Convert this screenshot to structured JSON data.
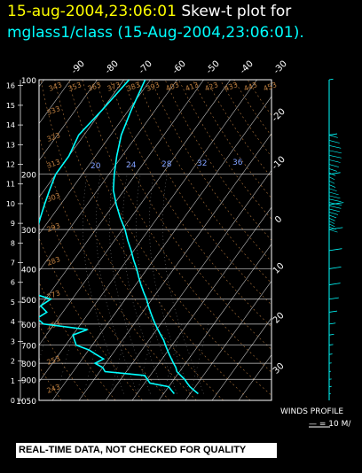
{
  "title": {
    "line1_date": "15-aug-2004,23:06:01",
    "line1_text": "Skew-t plot for",
    "line2": "mglass1/class (15-Aug-2004,23:06:01)."
  },
  "banner": "REAL-TIME DATA, NOT CHECKED FOR QUALITY",
  "winds": {
    "label": "WINDS PROFILE",
    "scale": "— = 10 M/"
  },
  "colors": {
    "temperature": "#00ffff",
    "dewpoint": "#00ffff",
    "isotherms": "#ffffff",
    "adiabats": "#c08040",
    "mixing": "#ffffff"
  },
  "chart_data": {
    "type": "line",
    "chart_kind": "skew-t log-p",
    "pressure_ticks": [
      100,
      200,
      300,
      400,
      500,
      600,
      700,
      800,
      900,
      1050
    ],
    "height_ticks_km": [
      16,
      15,
      14,
      13,
      12,
      11,
      10,
      9,
      8,
      7,
      6,
      5,
      4,
      3,
      2,
      1,
      0
    ],
    "temp_ticks_top": [
      "-90",
      "-80",
      "-70",
      "-60",
      "-50",
      "-40",
      "-30"
    ],
    "temp_ticks_right": [
      "-20",
      "-10",
      "0",
      "10",
      "20",
      "30"
    ],
    "mixing_ratio_labels": [
      "20",
      "24",
      "28",
      "32",
      "36"
    ],
    "dry_adiabat_labels": [
      "243",
      "253",
      "263",
      "273",
      "283",
      "293",
      "303",
      "313",
      "323",
      "333",
      "343",
      "353",
      "363",
      "373",
      "383",
      "393",
      "403",
      "413",
      "423",
      "433",
      "443",
      "453"
    ],
    "series": [
      {
        "p": [
          1000,
          975,
          950,
          925,
          900,
          875,
          850,
          825,
          800,
          775,
          750,
          725,
          700,
          675,
          650,
          625,
          600,
          575,
          550,
          525,
          500,
          475,
          450,
          425,
          400,
          375,
          350,
          325,
          300,
          275,
          250,
          225,
          200,
          175,
          150,
          125,
          100
        ],
        "t": [
          33,
          30.5,
          28,
          26,
          24,
          21.5,
          19,
          17.5,
          15.5,
          13.5,
          11.5,
          9.5,
          7.5,
          5.5,
          3,
          0.5,
          -2,
          -4.5,
          -7,
          -9.5,
          -12,
          -15,
          -18,
          -21,
          -24,
          -27.5,
          -31,
          -35,
          -39,
          -44,
          -49,
          -54,
          -58,
          -62,
          -66,
          -69,
          -72
        ]
      },
      {
        "p": [
          1000,
          975,
          950,
          925,
          900,
          875,
          850,
          825,
          800,
          775,
          750,
          725,
          700,
          675,
          650,
          625,
          600,
          575,
          550,
          525,
          500,
          475,
          450,
          425,
          400,
          375,
          350,
          325,
          300,
          275,
          250,
          225,
          200,
          175,
          150,
          125,
          100
        ],
        "t": [
          24,
          22,
          20,
          12,
          10,
          8,
          -8,
          -10,
          -14,
          -12,
          -16,
          -20,
          -26,
          -28,
          -30,
          -26,
          -44,
          -48,
          -46,
          -50,
          -48,
          -58,
          -58,
          -62,
          -64,
          -66,
          -68,
          -70,
          -72,
          -74,
          -76,
          -78,
          -80,
          -80,
          -82,
          -80,
          -78
        ]
      }
    ],
    "winds_profile": {
      "p": [
        1000,
        950,
        900,
        850,
        800,
        750,
        700,
        650,
        600,
        550,
        500,
        450,
        400,
        350,
        300,
        250,
        200,
        150,
        100
      ],
      "speed": [
        2,
        3,
        3,
        2,
        3,
        4,
        5,
        6,
        8,
        10,
        12,
        14,
        15,
        16,
        17,
        18,
        14,
        10,
        5
      ]
    }
  }
}
